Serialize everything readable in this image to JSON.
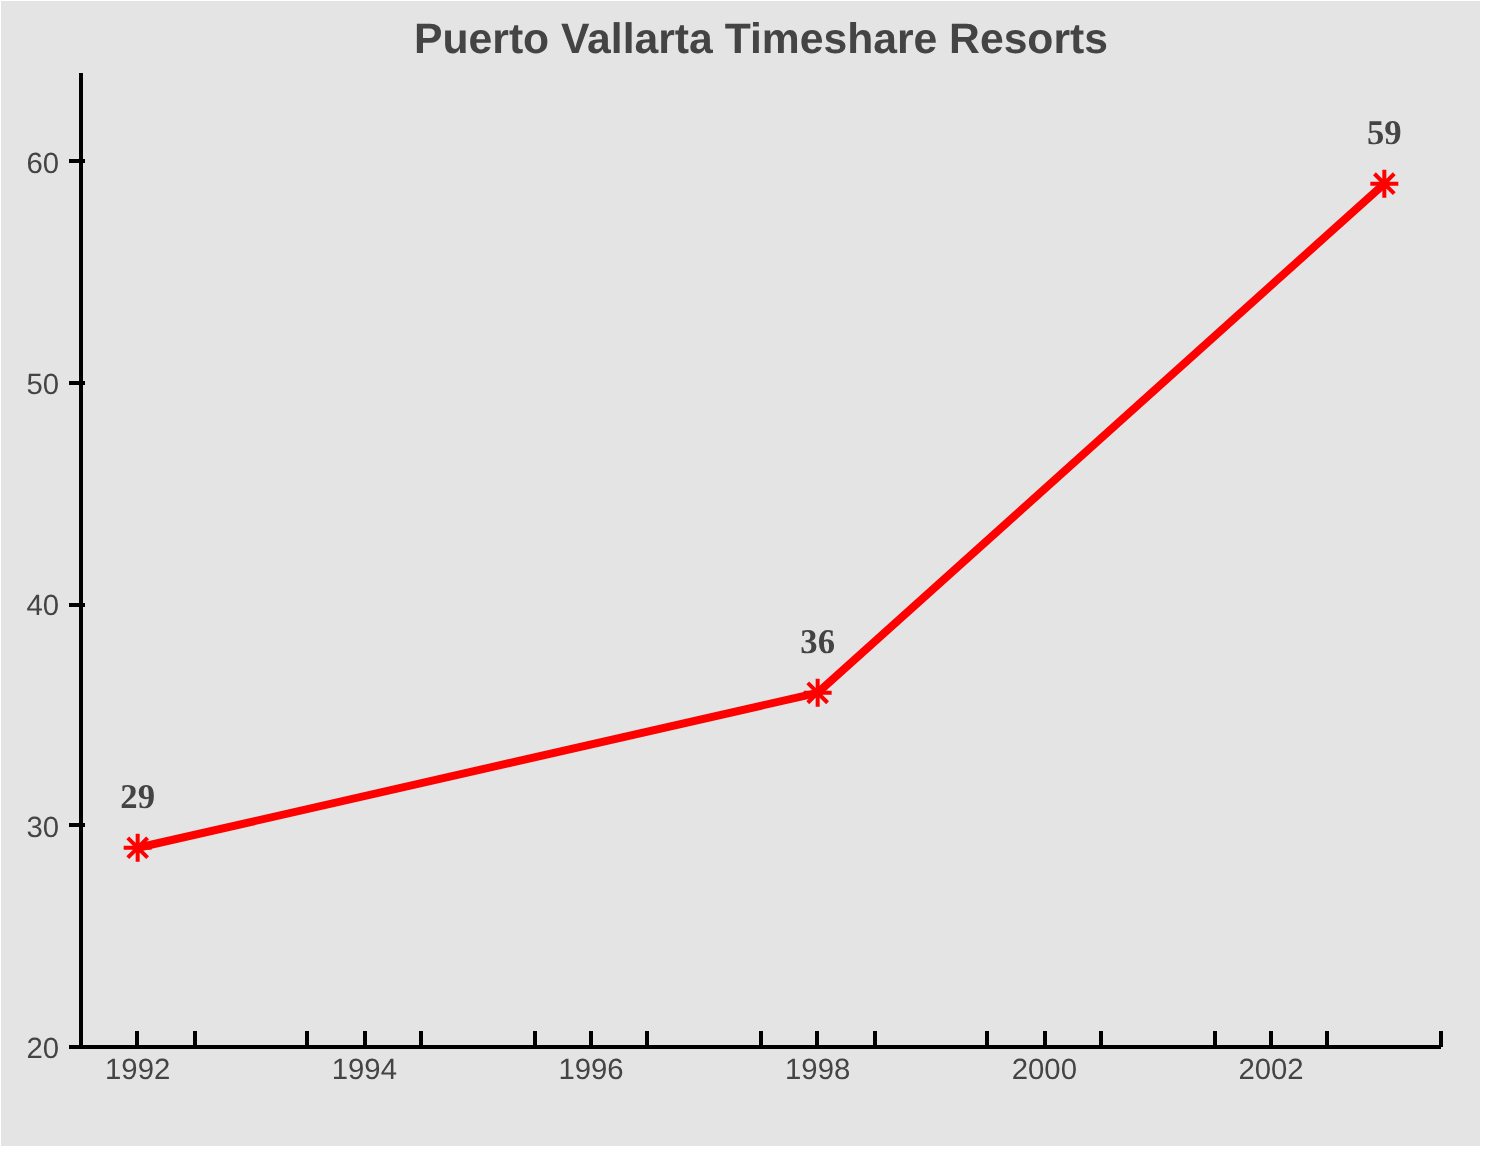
{
  "chart_data": {
    "type": "line",
    "title": "Puerto Vallarta Timeshare Resorts",
    "x": [
      1992,
      1998,
      2003
    ],
    "series": [
      {
        "color": "#ff0000",
        "values": [
          29,
          36,
          59
        ]
      }
    ],
    "xlim": [
      1991.5,
      2003.5
    ],
    "xticks": [
      1992,
      1994,
      1996,
      1998,
      2000,
      2002,
      {
        "value": 1992.5,
        "label": null
      },
      {
        "value": 1993.5,
        "label": null
      },
      {
        "value": 1994.5,
        "label": null
      },
      {
        "value": 1995.5,
        "label": null
      },
      {
        "value": 1996.5,
        "label": null
      },
      {
        "value": 1997.5,
        "label": null
      },
      {
        "value": 1998.5,
        "label": null
      },
      {
        "value": 1999.5,
        "label": null
      },
      {
        "value": 2000.5,
        "label": null
      },
      {
        "value": 2001.5,
        "label": null
      },
      {
        "value": 2002.5,
        "label": null
      },
      {
        "value": 2003.5,
        "label": null
      }
    ],
    "ylim": [
      20,
      64
    ],
    "yticks": [
      20,
      30,
      40,
      50,
      60
    ],
    "marker": "cross",
    "line_style": "solid",
    "data_labels": true
  }
}
